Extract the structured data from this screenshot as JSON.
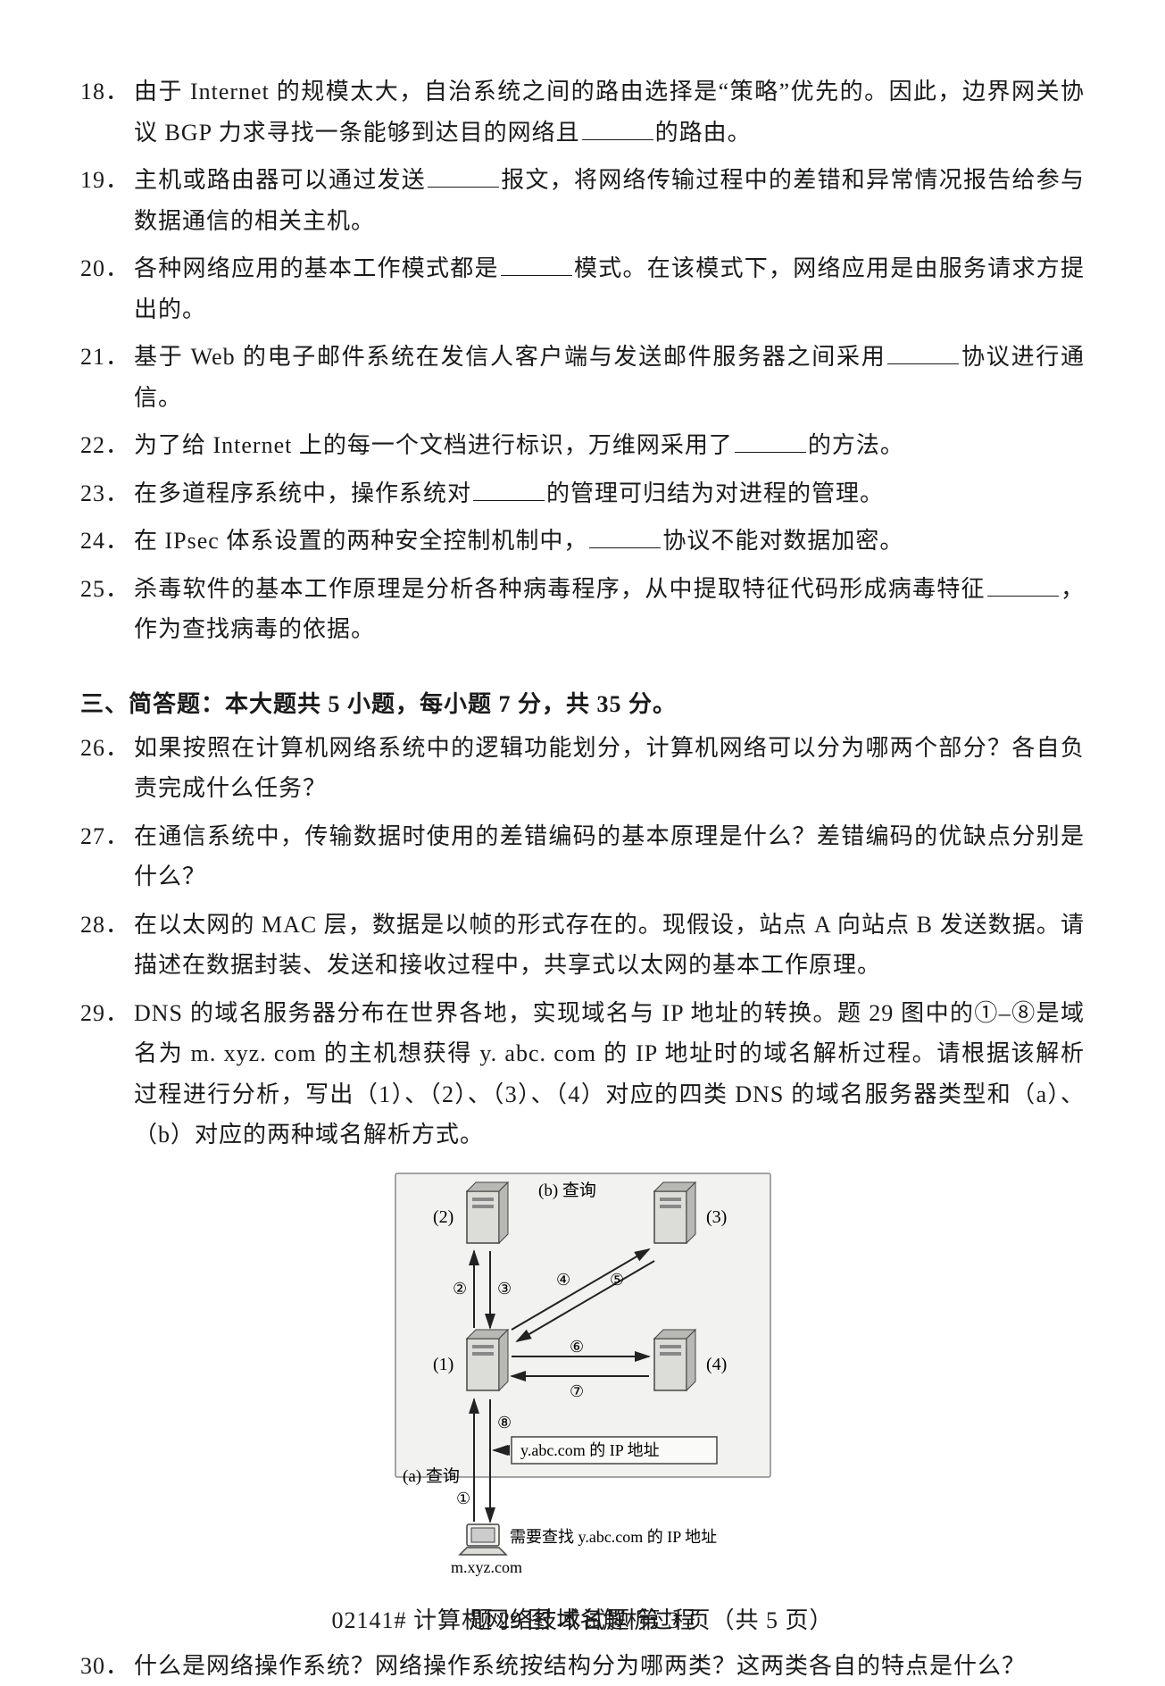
{
  "questions_fill": [
    {
      "num": "18．",
      "text_parts": [
        "由于 Internet 的规模太大，自治系统之间的路由选择是“策略”优先的。因此，边界网关协议 BGP 力求寻找一条能够到达目的网络且",
        "的路由。"
      ],
      "blanks": 1
    },
    {
      "num": "19．",
      "text_parts": [
        "主机或路由器可以通过发送",
        "报文，将网络传输过程中的差错和异常情况报告给参与数据通信的相关主机。"
      ],
      "blanks": 1
    },
    {
      "num": "20．",
      "text_parts": [
        "各种网络应用的基本工作模式都是",
        "模式。在该模式下，网络应用是由服务请求方提出的。"
      ],
      "blanks": 1
    },
    {
      "num": "21．",
      "text_parts": [
        "基于 Web 的电子邮件系统在发信人客户端与发送邮件服务器之间采用",
        "协议进行通信。"
      ],
      "blanks": 1
    },
    {
      "num": "22．",
      "text_parts": [
        "为了给 Internet 上的每一个文档进行标识，万维网采用了",
        "的方法。"
      ],
      "blanks": 1
    },
    {
      "num": "23．",
      "text_parts": [
        "在多道程序系统中，操作系统对",
        "的管理可归结为对进程的管理。"
      ],
      "blanks": 1
    },
    {
      "num": "24．",
      "text_parts": [
        "在 IPsec 体系设置的两种安全控制机制中，",
        "协议不能对数据加密。"
      ],
      "blanks": 1
    },
    {
      "num": "25．",
      "text_parts": [
        "杀毒软件的基本工作原理是分析各种病毒程序，从中提取特征代码形成病毒特征",
        "，作为查找病毒的依据。"
      ],
      "blanks": 1
    }
  ],
  "section_header": "三、简答题：本大题共 5 小题，每小题 7 分，共 35 分。",
  "questions_answer": [
    {
      "num": "26．",
      "text": "如果按照在计算机网络系统中的逻辑功能划分，计算机网络可以分为哪两个部分？各自负责完成什么任务？"
    },
    {
      "num": "27．",
      "text": "在通信系统中，传输数据时使用的差错编码的基本原理是什么？差错编码的优缺点分别是什么？"
    },
    {
      "num": "28．",
      "text": "在以太网的 MAC 层，数据是以帧的形式存在的。现假设，站点 A 向站点 B 发送数据。请描述在数据封装、发送和接收过程中，共享式以太网的基本工作原理。"
    },
    {
      "num": "29．",
      "text": "DNS 的域名服务器分布在世界各地，实现域名与 IP 地址的转换。题 29 图中的①–⑧是域名为 m. xyz. com 的主机想获得 y. abc. com 的 IP 地址时的域名解析过程。请根据该解析过程进行分析，写出（1）、（2）、（3）、（4）对应的四类 DNS 的域名服务器类型和（a）、（b）对应的两种域名解析方式。"
    }
  ],
  "q30": {
    "num": "30．",
    "text": "什么是网络操作系统？网络操作系统按结构分为哪两类？这两类各自的特点是什么？"
  },
  "diagram": {
    "caption": "题 29 图  域名解析过程",
    "labels": {
      "b_query": "(b) 查询",
      "a_query": "(a) 查询",
      "n1": "(1)",
      "n2": "(2)",
      "n3": "(3)",
      "n4": "(4)",
      "c1": "①",
      "c2": "②",
      "c3": "③",
      "c4": "④",
      "c5": "⑤",
      "c6": "⑥",
      "c7": "⑦",
      "c8": "⑧",
      "ip_box": "y.abc.com 的 IP 地址",
      "need": "需要查找 y.abc.com 的 IP 地址",
      "host": "m.xyz.com"
    },
    "colors": {
      "box_bg": "#f2f2f0",
      "box_border": "#444444",
      "server_body": "#dcdcd8",
      "server_shade": "#b8b8b4",
      "arrow": "#222222",
      "text": "#1a1a1a",
      "laptop": "#666666"
    }
  },
  "footer": "02141# 计算机网络技术试题 第 3 页（共 5 页）"
}
